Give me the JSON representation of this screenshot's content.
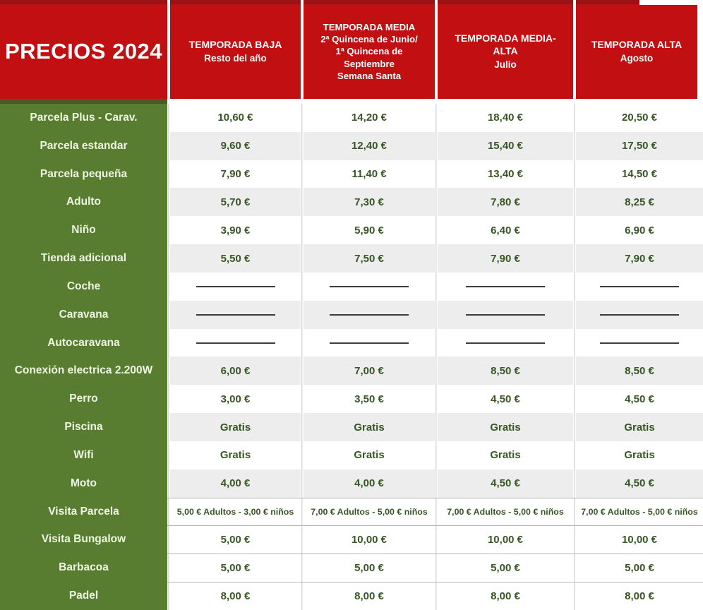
{
  "colors": {
    "red": "#c20f12",
    "red_dark": "#9a1215",
    "green": "#587d31",
    "green_dark": "#4a5a23",
    "price_text": "#375623",
    "label_text": "#eef5e2",
    "band_gray": "#ededed",
    "grid_line": "#d8d8d8",
    "separator_line": "#b3b3b3",
    "dash": "#3d3d3d"
  },
  "table": {
    "title": "PRECIOS 2024",
    "season_columns": [
      {
        "title": "TEMPORADA BAJA",
        "subtitle": "Resto del año"
      },
      {
        "title": "TEMPORADA MEDIA",
        "subtitle": "2ª Quincena de Junio/\n1ª Quincena de\nSeptiembre\nSemana Santa"
      },
      {
        "title": "TEMPORADA MEDIA-\nALTA",
        "subtitle": "Julio"
      },
      {
        "title": "TEMPORADA ALTA",
        "subtitle": "Agosto"
      }
    ],
    "rows": [
      {
        "label": "Parcela Plus - Carav.",
        "type": "price",
        "shade": "white",
        "values": [
          "10,60 €",
          "14,20 €",
          "18,40 €",
          "20,50 €"
        ]
      },
      {
        "label": "Parcela estandar",
        "type": "price",
        "shade": "gray",
        "values": [
          "9,60 €",
          "12,40 €",
          "15,40 €",
          "17,50 €"
        ]
      },
      {
        "label": "Parcela pequeña",
        "type": "price",
        "shade": "white",
        "values": [
          "7,90 €",
          "11,40 €",
          "13,40 €",
          "14,50 €"
        ]
      },
      {
        "label": "Adulto",
        "type": "price",
        "shade": "gray",
        "values": [
          "5,70 €",
          "7,30 €",
          "7,80 €",
          "8,25 €"
        ]
      },
      {
        "label": "Niño",
        "type": "price",
        "shade": "white",
        "values": [
          "3,90 €",
          "5,90 €",
          "6,40 €",
          "6,90 €"
        ]
      },
      {
        "label": "Tienda adicional",
        "type": "price",
        "shade": "gray",
        "values": [
          "5,50 €",
          "7,50 €",
          "7,90 €",
          "7,90 €"
        ]
      },
      {
        "label": "Coche",
        "type": "dash",
        "shade": "white",
        "values": [
          "",
          "",
          "",
          ""
        ]
      },
      {
        "label": "Caravana",
        "type": "dash",
        "shade": "gray",
        "values": [
          "",
          "",
          "",
          ""
        ]
      },
      {
        "label": "Autocaravana",
        "type": "dash",
        "shade": "white",
        "values": [
          "",
          "",
          "",
          ""
        ]
      },
      {
        "label": "Conexión electrica 2.200W",
        "type": "price",
        "shade": "gray",
        "values": [
          "6,00 €",
          "7,00 €",
          "8,50 €",
          "8,50 €"
        ]
      },
      {
        "label": "Perro",
        "type": "price",
        "shade": "white",
        "values": [
          "3,00 €",
          "3,50 €",
          "4,50 €",
          "4,50 €"
        ]
      },
      {
        "label": "Piscina",
        "type": "price",
        "shade": "gray",
        "values": [
          "Gratis",
          "Gratis",
          "Gratis",
          "Gratis"
        ]
      },
      {
        "label": "Wifi",
        "type": "price",
        "shade": "white",
        "values": [
          "Gratis",
          "Gratis",
          "Gratis",
          "Gratis"
        ]
      },
      {
        "label": "Moto",
        "type": "price",
        "shade": "gray",
        "values": [
          "4,00 €",
          "4,00 €",
          "4,50 €",
          "4,50 €"
        ]
      },
      {
        "label": "Visita Parcela",
        "type": "price",
        "shade": "white",
        "small": true,
        "separator": true,
        "values": [
          "5,00 € Adultos - 3,00 € niños",
          "7,00 € Adultos - 5,00 € niños",
          "7,00 € Adultos - 5,00 € niños",
          "7,00 € Adultos - 5,00 € niños"
        ]
      },
      {
        "label": "Visita Bungalow",
        "type": "price",
        "shade": "white",
        "separator": true,
        "values": [
          "5,00 €",
          "10,00 €",
          "10,00 €",
          "10,00 €"
        ]
      },
      {
        "label": "Barbacoa",
        "type": "price",
        "shade": "white",
        "separator": true,
        "values": [
          "5,00 €",
          "5,00 €",
          "5,00 €",
          "5,00 €"
        ]
      },
      {
        "label": "Padel",
        "type": "price",
        "shade": "white",
        "separator": true,
        "values": [
          "8,00 €",
          "8,00 €",
          "8,00 €",
          "8,00 €"
        ]
      }
    ]
  }
}
